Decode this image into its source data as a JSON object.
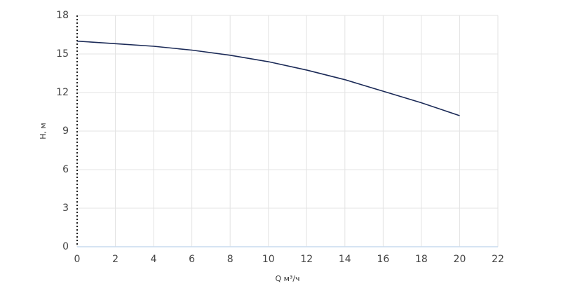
{
  "chart_data": {
    "type": "line",
    "x_label": "Q м³/ч",
    "y_label": "H, м",
    "x": [
      0,
      2,
      4,
      6,
      8,
      10,
      12,
      14,
      16,
      18,
      20
    ],
    "series": [
      {
        "name": "H",
        "color": "#1b2a57",
        "values": [
          16.0,
          15.8,
          15.6,
          15.3,
          14.9,
          14.4,
          13.75,
          13.0,
          12.1,
          11.2,
          10.2
        ]
      }
    ],
    "xlim": [
      0,
      22
    ],
    "xticks": [
      0,
      2,
      4,
      6,
      8,
      10,
      12,
      14,
      16,
      18,
      20,
      22
    ],
    "ylim": [
      0,
      18
    ],
    "yticks": [
      0,
      3,
      6,
      9,
      12,
      15,
      18
    ],
    "grid": true
  }
}
